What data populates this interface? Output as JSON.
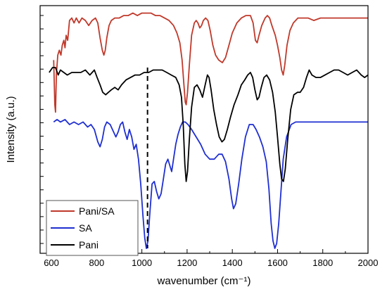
{
  "chart_data": {
    "type": "line",
    "xlabel": "wavenumber (cm⁻¹)",
    "ylabel": "Intensity (a.u.)",
    "xlim": [
      550,
      2000
    ],
    "ylim": [
      0,
      1
    ],
    "xticks": [
      600,
      800,
      1000,
      1200,
      1400,
      1600,
      1800,
      2000
    ],
    "x_tick_labels": [
      "600",
      "800",
      "1000",
      "1200",
      "1400",
      "1600",
      "1800",
      "2000"
    ],
    "y_tick_count": 18,
    "y_tick_labels_shown": false,
    "legend": {
      "placement": "bottom-left",
      "boxed": true
    },
    "annotations": [
      {
        "type": "dashed-vertical-line",
        "x": 1025
      }
    ],
    "series": [
      {
        "name": "Pani/SA",
        "color": "#c0392b",
        "points": [
          [
            610,
            0.78
          ],
          [
            615,
            0.6
          ],
          [
            618,
            0.57
          ],
          [
            622,
            0.72
          ],
          [
            628,
            0.8
          ],
          [
            635,
            0.82
          ],
          [
            642,
            0.8
          ],
          [
            648,
            0.84
          ],
          [
            655,
            0.86
          ],
          [
            660,
            0.83
          ],
          [
            665,
            0.88
          ],
          [
            672,
            0.86
          ],
          [
            680,
            0.94
          ],
          [
            690,
            0.95
          ],
          [
            700,
            0.93
          ],
          [
            710,
            0.95
          ],
          [
            722,
            0.93
          ],
          [
            735,
            0.95
          ],
          [
            750,
            0.94
          ],
          [
            765,
            0.92
          ],
          [
            780,
            0.94
          ],
          [
            795,
            0.95
          ],
          [
            805,
            0.93
          ],
          [
            815,
            0.87
          ],
          [
            825,
            0.82
          ],
          [
            832,
            0.8
          ],
          [
            838,
            0.82
          ],
          [
            845,
            0.87
          ],
          [
            855,
            0.92
          ],
          [
            865,
            0.94
          ],
          [
            880,
            0.95
          ],
          [
            900,
            0.95
          ],
          [
            920,
            0.96
          ],
          [
            940,
            0.96
          ],
          [
            960,
            0.97
          ],
          [
            980,
            0.96
          ],
          [
            1000,
            0.97
          ],
          [
            1020,
            0.97
          ],
          [
            1040,
            0.97
          ],
          [
            1060,
            0.96
          ],
          [
            1080,
            0.96
          ],
          [
            1100,
            0.95
          ],
          [
            1120,
            0.94
          ],
          [
            1140,
            0.92
          ],
          [
            1155,
            0.89
          ],
          [
            1168,
            0.85
          ],
          [
            1178,
            0.78
          ],
          [
            1186,
            0.68
          ],
          [
            1192,
            0.61
          ],
          [
            1196,
            0.6
          ],
          [
            1202,
            0.65
          ],
          [
            1210,
            0.76
          ],
          [
            1220,
            0.88
          ],
          [
            1232,
            0.93
          ],
          [
            1240,
            0.94
          ],
          [
            1248,
            0.93
          ],
          [
            1256,
            0.91
          ],
          [
            1264,
            0.92
          ],
          [
            1272,
            0.94
          ],
          [
            1282,
            0.95
          ],
          [
            1292,
            0.94
          ],
          [
            1302,
            0.9
          ],
          [
            1314,
            0.84
          ],
          [
            1326,
            0.8
          ],
          [
            1340,
            0.78
          ],
          [
            1356,
            0.77
          ],
          [
            1370,
            0.79
          ],
          [
            1385,
            0.84
          ],
          [
            1400,
            0.89
          ],
          [
            1420,
            0.93
          ],
          [
            1440,
            0.95
          ],
          [
            1460,
            0.96
          ],
          [
            1480,
            0.96
          ],
          [
            1492,
            0.93
          ],
          [
            1502,
            0.86
          ],
          [
            1510,
            0.85
          ],
          [
            1518,
            0.88
          ],
          [
            1530,
            0.92
          ],
          [
            1545,
            0.95
          ],
          [
            1555,
            0.96
          ],
          [
            1565,
            0.95
          ],
          [
            1575,
            0.92
          ],
          [
            1590,
            0.88
          ],
          [
            1600,
            0.84
          ],
          [
            1610,
            0.79
          ],
          [
            1618,
            0.74
          ],
          [
            1625,
            0.72
          ],
          [
            1632,
            0.76
          ],
          [
            1642,
            0.84
          ],
          [
            1655,
            0.9
          ],
          [
            1670,
            0.93
          ],
          [
            1690,
            0.95
          ],
          [
            1710,
            0.95
          ],
          [
            1735,
            0.95
          ],
          [
            1760,
            0.94
          ],
          [
            1790,
            0.95
          ],
          [
            1820,
            0.95
          ],
          [
            1860,
            0.95
          ],
          [
            1900,
            0.95
          ],
          [
            1950,
            0.95
          ],
          [
            2000,
            0.95
          ]
        ]
      },
      {
        "name": "SA",
        "color": "#1f2fd1",
        "points": [
          [
            610,
            0.53
          ],
          [
            625,
            0.54
          ],
          [
            640,
            0.53
          ],
          [
            660,
            0.54
          ],
          [
            680,
            0.52
          ],
          [
            700,
            0.53
          ],
          [
            720,
            0.52
          ],
          [
            740,
            0.53
          ],
          [
            760,
            0.51
          ],
          [
            775,
            0.52
          ],
          [
            790,
            0.5
          ],
          [
            805,
            0.45
          ],
          [
            815,
            0.43
          ],
          [
            825,
            0.46
          ],
          [
            835,
            0.51
          ],
          [
            845,
            0.53
          ],
          [
            860,
            0.52
          ],
          [
            875,
            0.49
          ],
          [
            885,
            0.47
          ],
          [
            895,
            0.49
          ],
          [
            905,
            0.52
          ],
          [
            915,
            0.53
          ],
          [
            925,
            0.49
          ],
          [
            935,
            0.46
          ],
          [
            945,
            0.5
          ],
          [
            955,
            0.47
          ],
          [
            965,
            0.42
          ],
          [
            975,
            0.44
          ],
          [
            985,
            0.38
          ],
          [
            995,
            0.28
          ],
          [
            1005,
            0.15
          ],
          [
            1013,
            0.06
          ],
          [
            1020,
            0.02
          ],
          [
            1027,
            0.05
          ],
          [
            1035,
            0.16
          ],
          [
            1045,
            0.28
          ],
          [
            1055,
            0.29
          ],
          [
            1065,
            0.25
          ],
          [
            1075,
            0.22
          ],
          [
            1085,
            0.24
          ],
          [
            1095,
            0.3
          ],
          [
            1105,
            0.36
          ],
          [
            1115,
            0.38
          ],
          [
            1125,
            0.35
          ],
          [
            1132,
            0.33
          ],
          [
            1140,
            0.38
          ],
          [
            1150,
            0.44
          ],
          [
            1160,
            0.48
          ],
          [
            1170,
            0.51
          ],
          [
            1180,
            0.53
          ],
          [
            1192,
            0.53
          ],
          [
            1204,
            0.52
          ],
          [
            1220,
            0.5
          ],
          [
            1240,
            0.47
          ],
          [
            1260,
            0.44
          ],
          [
            1280,
            0.4
          ],
          [
            1300,
            0.38
          ],
          [
            1320,
            0.38
          ],
          [
            1340,
            0.4
          ],
          [
            1355,
            0.4
          ],
          [
            1370,
            0.37
          ],
          [
            1385,
            0.3
          ],
          [
            1397,
            0.22
          ],
          [
            1405,
            0.18
          ],
          [
            1415,
            0.2
          ],
          [
            1428,
            0.28
          ],
          [
            1442,
            0.38
          ],
          [
            1458,
            0.47
          ],
          [
            1475,
            0.52
          ],
          [
            1492,
            0.52
          ],
          [
            1505,
            0.5
          ],
          [
            1520,
            0.47
          ],
          [
            1535,
            0.43
          ],
          [
            1550,
            0.37
          ],
          [
            1562,
            0.26
          ],
          [
            1572,
            0.12
          ],
          [
            1580,
            0.05
          ],
          [
            1588,
            0.02
          ],
          [
            1596,
            0.04
          ],
          [
            1605,
            0.12
          ],
          [
            1615,
            0.25
          ],
          [
            1625,
            0.38
          ],
          [
            1640,
            0.47
          ],
          [
            1660,
            0.52
          ],
          [
            1680,
            0.53
          ],
          [
            1710,
            0.53
          ],
          [
            1750,
            0.53
          ],
          [
            1800,
            0.53
          ],
          [
            1850,
            0.53
          ],
          [
            1900,
            0.53
          ],
          [
            1950,
            0.53
          ],
          [
            2000,
            0.53
          ]
        ]
      },
      {
        "name": "Pani",
        "color": "#000000",
        "points": [
          [
            590,
            0.73
          ],
          [
            605,
            0.75
          ],
          [
            618,
            0.75
          ],
          [
            630,
            0.72
          ],
          [
            640,
            0.74
          ],
          [
            655,
            0.73
          ],
          [
            670,
            0.72
          ],
          [
            690,
            0.73
          ],
          [
            710,
            0.73
          ],
          [
            730,
            0.73
          ],
          [
            750,
            0.74
          ],
          [
            770,
            0.72
          ],
          [
            790,
            0.74
          ],
          [
            802,
            0.71
          ],
          [
            815,
            0.68
          ],
          [
            827,
            0.65
          ],
          [
            840,
            0.64
          ],
          [
            852,
            0.65
          ],
          [
            865,
            0.66
          ],
          [
            880,
            0.67
          ],
          [
            895,
            0.66
          ],
          [
            910,
            0.68
          ],
          [
            930,
            0.7
          ],
          [
            950,
            0.71
          ],
          [
            970,
            0.72
          ],
          [
            990,
            0.72
          ],
          [
            1010,
            0.73
          ],
          [
            1030,
            0.73
          ],
          [
            1050,
            0.74
          ],
          [
            1070,
            0.74
          ],
          [
            1090,
            0.74
          ],
          [
            1110,
            0.73
          ],
          [
            1130,
            0.72
          ],
          [
            1150,
            0.71
          ],
          [
            1165,
            0.68
          ],
          [
            1175,
            0.63
          ],
          [
            1183,
            0.52
          ],
          [
            1190,
            0.36
          ],
          [
            1196,
            0.29
          ],
          [
            1202,
            0.33
          ],
          [
            1210,
            0.46
          ],
          [
            1220,
            0.59
          ],
          [
            1232,
            0.67
          ],
          [
            1244,
            0.68
          ],
          [
            1256,
            0.66
          ],
          [
            1268,
            0.63
          ],
          [
            1280,
            0.68
          ],
          [
            1290,
            0.72
          ],
          [
            1297,
            0.71
          ],
          [
            1306,
            0.66
          ],
          [
            1318,
            0.58
          ],
          [
            1330,
            0.52
          ],
          [
            1342,
            0.47
          ],
          [
            1354,
            0.45
          ],
          [
            1365,
            0.46
          ],
          [
            1378,
            0.5
          ],
          [
            1392,
            0.55
          ],
          [
            1408,
            0.6
          ],
          [
            1425,
            0.64
          ],
          [
            1440,
            0.68
          ],
          [
            1455,
            0.7
          ],
          [
            1468,
            0.72
          ],
          [
            1480,
            0.73
          ],
          [
            1490,
            0.71
          ],
          [
            1500,
            0.66
          ],
          [
            1510,
            0.62
          ],
          [
            1518,
            0.63
          ],
          [
            1528,
            0.67
          ],
          [
            1540,
            0.71
          ],
          [
            1552,
            0.72
          ],
          [
            1565,
            0.7
          ],
          [
            1578,
            0.65
          ],
          [
            1590,
            0.57
          ],
          [
            1600,
            0.47
          ],
          [
            1610,
            0.36
          ],
          [
            1618,
            0.3
          ],
          [
            1626,
            0.29
          ],
          [
            1634,
            0.34
          ],
          [
            1645,
            0.46
          ],
          [
            1658,
            0.58
          ],
          [
            1672,
            0.64
          ],
          [
            1688,
            0.65
          ],
          [
            1700,
            0.65
          ],
          [
            1715,
            0.67
          ],
          [
            1728,
            0.71
          ],
          [
            1740,
            0.74
          ],
          [
            1752,
            0.72
          ],
          [
            1770,
            0.71
          ],
          [
            1790,
            0.71
          ],
          [
            1810,
            0.72
          ],
          [
            1830,
            0.73
          ],
          [
            1850,
            0.74
          ],
          [
            1870,
            0.74
          ],
          [
            1890,
            0.73
          ],
          [
            1910,
            0.72
          ],
          [
            1930,
            0.73
          ],
          [
            1950,
            0.74
          ],
          [
            1970,
            0.72
          ],
          [
            1985,
            0.71
          ],
          [
            2000,
            0.72
          ]
        ]
      }
    ]
  }
}
